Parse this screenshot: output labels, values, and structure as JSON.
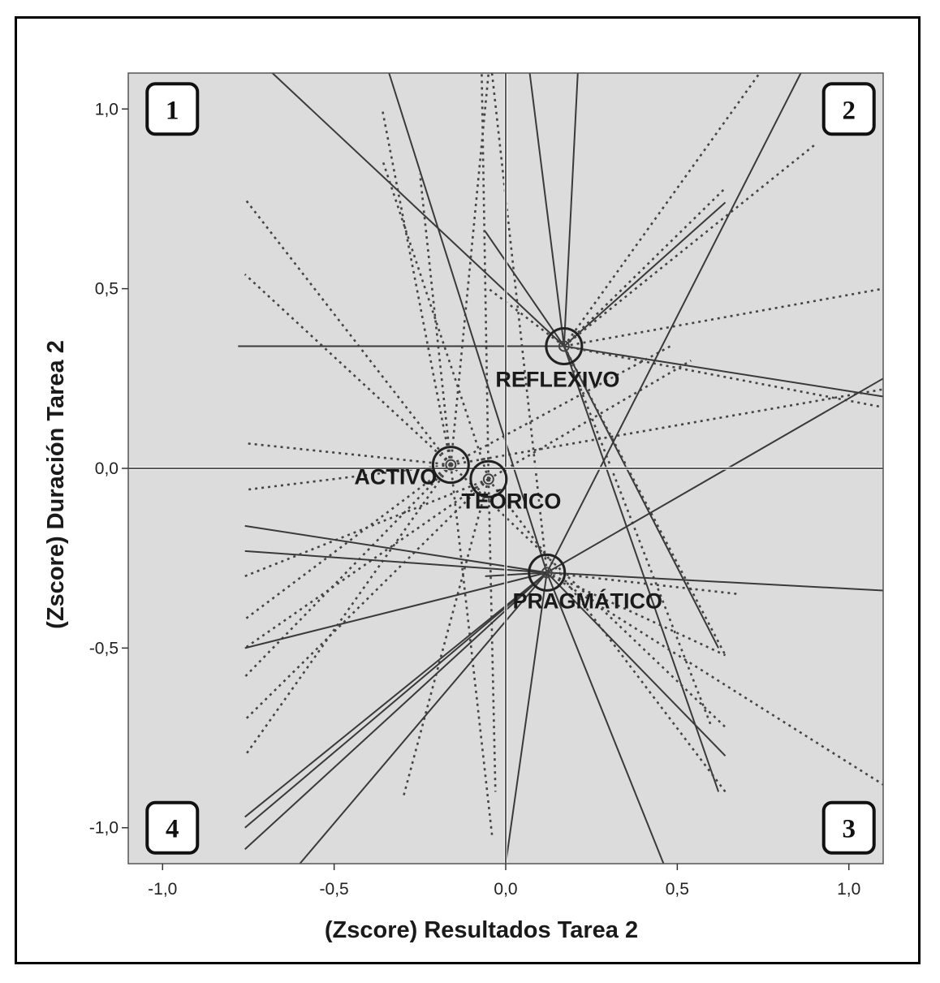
{
  "chart_data": {
    "type": "scatter",
    "title": "",
    "xlabel": "(Zscore) Resultados Tarea 2",
    "ylabel": "(Zscore) Duración Tarea 2",
    "xlim": [
      -1.1,
      1.1
    ],
    "ylim": [
      -1.1,
      1.1
    ],
    "x_ticks": [
      -1.0,
      -0.5,
      0.0,
      0.5,
      1.0
    ],
    "x_tick_labels": [
      "-1,0",
      "-0,5",
      "0,0",
      "0,5",
      "1,0"
    ],
    "y_ticks": [
      1.0,
      0.5,
      0.0,
      -0.5,
      -1.0
    ],
    "y_tick_labels": [
      "1,0",
      "0,5",
      "0,0",
      "-0,5",
      "-1,0"
    ],
    "reference_lines": {
      "x": 0.0,
      "y": 0.0
    },
    "quadrants": [
      {
        "label": "1",
        "x": -1.0,
        "y": 1.0
      },
      {
        "label": "2",
        "x": 1.0,
        "y": 1.0
      },
      {
        "label": "3",
        "x": 1.0,
        "y": -1.0
      },
      {
        "label": "4",
        "x": -1.0,
        "y": -1.0
      }
    ],
    "centroids": [
      {
        "name": "ACTIVO",
        "x": -0.16,
        "y": 0.01
      },
      {
        "name": "TEÓRICO",
        "x": -0.05,
        "y": -0.03
      },
      {
        "name": "REFLEXIVO",
        "x": 0.17,
        "y": 0.34
      },
      {
        "name": "PRAGMÁTICO",
        "x": 0.12,
        "y": -0.29
      }
    ],
    "spokes": [
      {
        "group": "REFLEXIVO",
        "style": "solid",
        "x": -0.68,
        "y": 1.1
      },
      {
        "group": "REFLEXIVO",
        "style": "solid",
        "x": -0.78,
        "y": 0.34
      },
      {
        "group": "REFLEXIVO",
        "style": "solid",
        "x": 0.21,
        "y": 1.1
      },
      {
        "group": "REFLEXIVO",
        "style": "solid",
        "x": 0.07,
        "y": 1.1
      },
      {
        "group": "REFLEXIVO",
        "style": "solid",
        "x": 1.1,
        "y": 0.2
      },
      {
        "group": "REFLEXIVO",
        "style": "solid",
        "x": 0.62,
        "y": -0.5
      },
      {
        "group": "REFLEXIVO",
        "style": "solid",
        "x": 0.62,
        "y": -0.9
      },
      {
        "group": "REFLEXIVO",
        "style": "solid",
        "x": 0.64,
        "y": 0.74
      },
      {
        "group": "REFLEXIVO",
        "style": "solid",
        "x": -0.06,
        "y": 0.66
      },
      {
        "group": "REFLEXIVO",
        "style": "dotted",
        "x": 0.74,
        "y": 1.1
      },
      {
        "group": "REFLEXIVO",
        "style": "dotted",
        "x": 0.9,
        "y": 0.9
      },
      {
        "group": "REFLEXIVO",
        "style": "dotted",
        "x": 1.1,
        "y": 0.5
      },
      {
        "group": "REFLEXIVO",
        "style": "dotted",
        "x": 1.1,
        "y": 0.17
      },
      {
        "group": "REFLEXIVO",
        "style": "dotted",
        "x": 0.64,
        "y": 0.78
      },
      {
        "group": "REFLEXIVO",
        "style": "dotted",
        "x": 0.6,
        "y": -0.72
      },
      {
        "group": "REFLEXIVO",
        "style": "dotted",
        "x": 0.64,
        "y": -0.52
      },
      {
        "group": "REFLEXIVO",
        "style": "dotted",
        "x": -0.05,
        "y": 0.5
      },
      {
        "group": "ACTIVO",
        "style": "dotted",
        "x": -0.76,
        "y": 0.75
      },
      {
        "group": "ACTIVO",
        "style": "dotted",
        "x": -0.76,
        "y": 0.54
      },
      {
        "group": "ACTIVO",
        "style": "dotted",
        "x": -0.76,
        "y": 0.07
      },
      {
        "group": "ACTIVO",
        "style": "dotted",
        "x": -0.76,
        "y": -0.06
      },
      {
        "group": "ACTIVO",
        "style": "dotted",
        "x": -0.76,
        "y": -0.42
      },
      {
        "group": "ACTIVO",
        "style": "dotted",
        "x": -0.76,
        "y": -0.58
      },
      {
        "group": "ACTIVO",
        "style": "dotted",
        "x": -0.76,
        "y": -0.8
      },
      {
        "group": "ACTIVO",
        "style": "dotted",
        "x": -0.36,
        "y": 1.0
      },
      {
        "group": "ACTIVO",
        "style": "dotted",
        "x": -0.25,
        "y": 0.82
      },
      {
        "group": "ACTIVO",
        "style": "dotted",
        "x": -0.05,
        "y": 1.1
      },
      {
        "group": "ACTIVO",
        "style": "dotted",
        "x": -0.04,
        "y": -1.02
      },
      {
        "group": "ACTIVO",
        "style": "dotted",
        "x": 0.48,
        "y": 0.34
      },
      {
        "group": "ACTIVO",
        "style": "dotted",
        "x": 0.64,
        "y": -0.72
      },
      {
        "group": "ACTIVO",
        "style": "dotted",
        "x": 1.1,
        "y": 0.22
      },
      {
        "group": "TEÓRICO",
        "style": "dotted",
        "x": -0.76,
        "y": -0.3
      },
      {
        "group": "TEÓRICO",
        "style": "dotted",
        "x": -0.76,
        "y": -0.7
      },
      {
        "group": "TEÓRICO",
        "style": "dotted",
        "x": -0.76,
        "y": -0.5
      },
      {
        "group": "TEÓRICO",
        "style": "dotted",
        "x": -0.3,
        "y": -0.92
      },
      {
        "group": "TEÓRICO",
        "style": "dotted",
        "x": -0.07,
        "y": 1.1
      },
      {
        "group": "TEÓRICO",
        "style": "dotted",
        "x": -0.03,
        "y": -0.9
      },
      {
        "group": "TEÓRICO",
        "style": "dotted",
        "x": 0.54,
        "y": 0.3
      },
      {
        "group": "TEÓRICO",
        "style": "dotted",
        "x": 0.64,
        "y": -0.9
      },
      {
        "group": "TEÓRICO",
        "style": "dotted",
        "x": -0.36,
        "y": 0.86
      },
      {
        "group": "PRAGMÁTICO",
        "style": "solid",
        "x": -0.76,
        "y": -0.16
      },
      {
        "group": "PRAGMÁTICO",
        "style": "solid",
        "x": -0.76,
        "y": -0.23
      },
      {
        "group": "PRAGMÁTICO",
        "style": "solid",
        "x": -0.76,
        "y": -0.5
      },
      {
        "group": "PRAGMÁTICO",
        "style": "solid",
        "x": -0.76,
        "y": -0.97
      },
      {
        "group": "PRAGMÁTICO",
        "style": "solid",
        "x": -0.76,
        "y": -1.0
      },
      {
        "group": "PRAGMÁTICO",
        "style": "solid",
        "x": -0.76,
        "y": -1.06
      },
      {
        "group": "PRAGMÁTICO",
        "style": "solid",
        "x": -0.6,
        "y": -1.1
      },
      {
        "group": "PRAGMÁTICO",
        "style": "solid",
        "x": 0.0,
        "y": -1.1
      },
      {
        "group": "PRAGMÁTICO",
        "style": "solid",
        "x": 0.46,
        "y": -1.1
      },
      {
        "group": "PRAGMÁTICO",
        "style": "solid",
        "x": 0.64,
        "y": -0.8
      },
      {
        "group": "PRAGMÁTICO",
        "style": "solid",
        "x": 1.1,
        "y": 0.25
      },
      {
        "group": "PRAGMÁTICO",
        "style": "solid",
        "x": 1.1,
        "y": -0.34
      },
      {
        "group": "PRAGMÁTICO",
        "style": "solid",
        "x": 0.86,
        "y": 1.1
      },
      {
        "group": "PRAGMÁTICO",
        "style": "solid",
        "x": -0.34,
        "y": 1.1
      },
      {
        "group": "PRAGMÁTICO",
        "style": "solid",
        "x": -0.06,
        "y": -0.3
      },
      {
        "group": "PRAGMÁTICO",
        "style": "dotted",
        "x": -0.04,
        "y": 1.1
      },
      {
        "group": "PRAGMÁTICO",
        "style": "dotted",
        "x": 0.68,
        "y": -0.35
      },
      {
        "group": "PRAGMÁTICO",
        "style": "dotted",
        "x": 1.1,
        "y": -0.88
      },
      {
        "group": "PRAGMÁTICO",
        "style": "dotted",
        "x": 0.64,
        "y": -0.52
      }
    ]
  }
}
